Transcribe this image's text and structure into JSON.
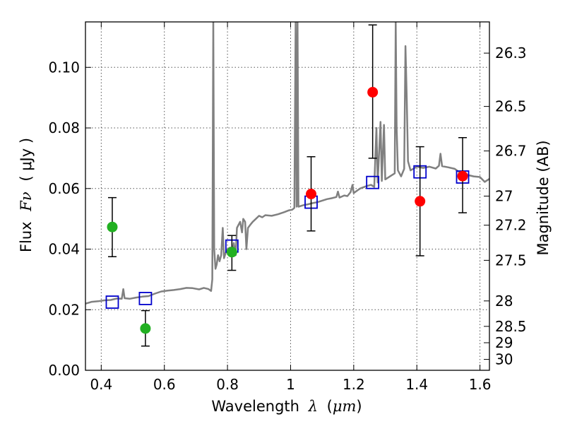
{
  "chart_data": {
    "type": "scatter",
    "xlabel_text": "Wavelength",
    "xlabel_symbol": "λ",
    "xlabel_unit_open": "(",
    "xlabel_unit": "μm",
    "xlabel_unit_close": ")",
    "ylabel_text": "Flux",
    "ylabel_symbol": "Fν",
    "ylabel_unit": "( μJy )",
    "y2label": "Magnitude (AB)",
    "xlim": [
      0.35,
      1.63
    ],
    "ylim": [
      0.0,
      0.115
    ],
    "x_ticks": [
      {
        "value": 0.4,
        "label": "0.4"
      },
      {
        "value": 0.6,
        "label": "0.6"
      },
      {
        "value": 0.8,
        "label": "0.8"
      },
      {
        "value": 1.0,
        "label": "1"
      },
      {
        "value": 1.2,
        "label": "1.2"
      },
      {
        "value": 1.4,
        "label": "1.4"
      },
      {
        "value": 1.6,
        "label": "1.6"
      }
    ],
    "y_ticks": [
      {
        "value": 0.0,
        "label": "0.00"
      },
      {
        "value": 0.02,
        "label": "0.02"
      },
      {
        "value": 0.04,
        "label": "0.04"
      },
      {
        "value": 0.06,
        "label": "0.06"
      },
      {
        "value": 0.08,
        "label": "0.08"
      },
      {
        "value": 0.1,
        "label": "0.10"
      }
    ],
    "mag_ticks": [
      {
        "label": "26.3",
        "flux": 0.1047
      },
      {
        "label": "26.5",
        "flux": 0.0871
      },
      {
        "label": "26.7",
        "flux": 0.0724
      },
      {
        "label": "27",
        "flux": 0.0575
      },
      {
        "label": "27.2",
        "flux": 0.0479
      },
      {
        "label": "27.5",
        "flux": 0.0363
      },
      {
        "label": "28",
        "flux": 0.0229
      },
      {
        "label": "28.5",
        "flux": 0.0145
      },
      {
        "label": "29",
        "flux": 0.0091
      },
      {
        "label": "30",
        "flux": 0.0036
      }
    ],
    "green_points": [
      {
        "x": 0.435,
        "y": 0.0473,
        "ylo": 0.0375,
        "yhi": 0.057
      },
      {
        "x": 0.54,
        "y": 0.0138,
        "ylo": 0.008,
        "yhi": 0.0197
      },
      {
        "x": 0.814,
        "y": 0.039,
        "ylo": 0.033,
        "yhi": 0.0445
      }
    ],
    "red_points": [
      {
        "x": 1.065,
        "y": 0.0582,
        "ylo": 0.046,
        "yhi": 0.0705
      },
      {
        "x": 1.26,
        "y": 0.0918,
        "ylo": 0.07,
        "yhi": 0.114
      },
      {
        "x": 1.41,
        "y": 0.0558,
        "ylo": 0.0378,
        "yhi": 0.0738
      },
      {
        "x": 1.545,
        "y": 0.0641,
        "ylo": 0.052,
        "yhi": 0.0768
      }
    ],
    "model_points": [
      {
        "x": 0.435,
        "y": 0.0225
      },
      {
        "x": 0.54,
        "y": 0.0237
      },
      {
        "x": 0.814,
        "y": 0.041
      },
      {
        "x": 1.065,
        "y": 0.0555
      },
      {
        "x": 1.26,
        "y": 0.062
      },
      {
        "x": 1.41,
        "y": 0.0655
      },
      {
        "x": 1.545,
        "y": 0.0638
      }
    ],
    "spectrum": [
      [
        0.35,
        0.022
      ],
      [
        0.37,
        0.0226
      ],
      [
        0.39,
        0.0228
      ],
      [
        0.41,
        0.0231
      ],
      [
        0.43,
        0.0232
      ],
      [
        0.45,
        0.0237
      ],
      [
        0.465,
        0.0236
      ],
      [
        0.47,
        0.0268
      ],
      [
        0.474,
        0.0238
      ],
      [
        0.49,
        0.0236
      ],
      [
        0.51,
        0.024
      ],
      [
        0.53,
        0.0243
      ],
      [
        0.55,
        0.0245
      ],
      [
        0.57,
        0.0253
      ],
      [
        0.59,
        0.026
      ],
      [
        0.61,
        0.0263
      ],
      [
        0.63,
        0.0265
      ],
      [
        0.65,
        0.0268
      ],
      [
        0.67,
        0.0272
      ],
      [
        0.69,
        0.0271
      ],
      [
        0.71,
        0.0267
      ],
      [
        0.725,
        0.0272
      ],
      [
        0.74,
        0.0268
      ],
      [
        0.748,
        0.0262
      ],
      [
        0.752,
        0.03
      ],
      [
        0.755,
        0.115
      ],
      [
        0.758,
        0.04
      ],
      [
        0.762,
        0.0335
      ],
      [
        0.766,
        0.035
      ],
      [
        0.77,
        0.038
      ],
      [
        0.775,
        0.036
      ],
      [
        0.78,
        0.038
      ],
      [
        0.785,
        0.047
      ],
      [
        0.789,
        0.037
      ],
      [
        0.795,
        0.039
      ],
      [
        0.8,
        0.04
      ],
      [
        0.808,
        0.0405
      ],
      [
        0.815,
        0.039
      ],
      [
        0.82,
        0.042
      ],
      [
        0.826,
        0.038
      ],
      [
        0.83,
        0.047
      ],
      [
        0.835,
        0.048
      ],
      [
        0.84,
        0.049
      ],
      [
        0.846,
        0.0455
      ],
      [
        0.85,
        0.05
      ],
      [
        0.856,
        0.049
      ],
      [
        0.86,
        0.04
      ],
      [
        0.865,
        0.047
      ],
      [
        0.872,
        0.048
      ],
      [
        0.88,
        0.049
      ],
      [
        0.89,
        0.05
      ],
      [
        0.9,
        0.051
      ],
      [
        0.91,
        0.0505
      ],
      [
        0.92,
        0.0512
      ],
      [
        0.94,
        0.051
      ],
      [
        0.96,
        0.0515
      ],
      [
        0.98,
        0.0522
      ],
      [
        0.995,
        0.0528
      ],
      [
        1.005,
        0.053
      ],
      [
        1.012,
        0.0536
      ],
      [
        1.016,
        0.115
      ],
      [
        1.019,
        0.054
      ],
      [
        1.022,
        0.115
      ],
      [
        1.025,
        0.054
      ],
      [
        1.04,
        0.0545
      ],
      [
        1.055,
        0.0548
      ],
      [
        1.07,
        0.0552
      ],
      [
        1.085,
        0.0555
      ],
      [
        1.1,
        0.056
      ],
      [
        1.115,
        0.0565
      ],
      [
        1.13,
        0.0568
      ],
      [
        1.145,
        0.0572
      ],
      [
        1.15,
        0.059
      ],
      [
        1.155,
        0.057
      ],
      [
        1.17,
        0.0577
      ],
      [
        1.18,
        0.0575
      ],
      [
        1.19,
        0.0588
      ],
      [
        1.196,
        0.0612
      ],
      [
        1.2,
        0.0585
      ],
      [
        1.22,
        0.06
      ],
      [
        1.24,
        0.0608
      ],
      [
        1.255,
        0.0612
      ],
      [
        1.265,
        0.0605
      ],
      [
        1.272,
        0.08
      ],
      [
        1.276,
        0.062
      ],
      [
        1.285,
        0.082
      ],
      [
        1.289,
        0.0625
      ],
      [
        1.296,
        0.081
      ],
      [
        1.3,
        0.063
      ],
      [
        1.315,
        0.064
      ],
      [
        1.33,
        0.065
      ],
      [
        1.333,
        0.115
      ],
      [
        1.336,
        0.08
      ],
      [
        1.34,
        0.066
      ],
      [
        1.35,
        0.064
      ],
      [
        1.36,
        0.0665
      ],
      [
        1.364,
        0.107
      ],
      [
        1.368,
        0.09
      ],
      [
        1.372,
        0.069
      ],
      [
        1.38,
        0.066
      ],
      [
        1.4,
        0.0672
      ],
      [
        1.42,
        0.0668
      ],
      [
        1.44,
        0.0672
      ],
      [
        1.46,
        0.0666
      ],
      [
        1.47,
        0.0675
      ],
      [
        1.475,
        0.0715
      ],
      [
        1.48,
        0.0674
      ],
      [
        1.5,
        0.067
      ],
      [
        1.52,
        0.0665
      ],
      [
        1.54,
        0.065
      ],
      [
        1.56,
        0.0645
      ],
      [
        1.58,
        0.064
      ],
      [
        1.6,
        0.0638
      ],
      [
        1.615,
        0.0622
      ],
      [
        1.63,
        0.0632
      ]
    ],
    "colors": {
      "spectrum": "#808080",
      "green": "#22b022",
      "red": "#ff0000",
      "model": "#0000cc",
      "error": "#000000",
      "grid": "#555555"
    }
  }
}
